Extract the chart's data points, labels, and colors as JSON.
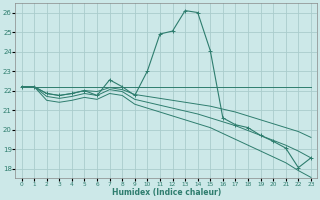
{
  "xlabel": "Humidex (Indice chaleur)",
  "bg_color": "#cce8e8",
  "grid_color": "#aacccc",
  "line_color": "#2e7d6e",
  "xlim": [
    -0.5,
    23.5
  ],
  "ylim": [
    17.5,
    26.5
  ],
  "yticks": [
    18,
    19,
    20,
    21,
    22,
    23,
    24,
    25,
    26
  ],
  "xticks": [
    0,
    1,
    2,
    3,
    4,
    5,
    6,
    7,
    8,
    9,
    10,
    11,
    12,
    13,
    14,
    15,
    16,
    17,
    18,
    19,
    20,
    21,
    22,
    23
  ],
  "series_flat_x": [
    0,
    1,
    2,
    3,
    4,
    5,
    6,
    7,
    8,
    9,
    10,
    11,
    12,
    13,
    14,
    15,
    16,
    17,
    18,
    19,
    20,
    21,
    22,
    23
  ],
  "series_flat_y": [
    22.2,
    22.2,
    22.2,
    22.2,
    22.2,
    22.2,
    22.2,
    22.2,
    22.2,
    22.2,
    22.2,
    22.2,
    22.2,
    22.2,
    22.2,
    22.2,
    22.2,
    22.2,
    22.2,
    22.2,
    22.2,
    22.2,
    22.2,
    22.2
  ],
  "series_upper_x": [
    0,
    1,
    2,
    3,
    4,
    5,
    6,
    7,
    8,
    9,
    10,
    11,
    12,
    13,
    14,
    15,
    16,
    17,
    18,
    19,
    20,
    21,
    22,
    23
  ],
  "series_upper_y": [
    22.2,
    22.2,
    21.85,
    21.75,
    21.85,
    22.0,
    21.95,
    22.15,
    22.05,
    21.8,
    21.7,
    21.6,
    21.5,
    21.4,
    21.3,
    21.2,
    21.05,
    20.9,
    20.7,
    20.5,
    20.3,
    20.1,
    19.9,
    19.6
  ],
  "series_lower_x": [
    0,
    1,
    2,
    3,
    4,
    5,
    6,
    7,
    8,
    9,
    10,
    11,
    12,
    13,
    14,
    15,
    16,
    17,
    18,
    19,
    20,
    21,
    22,
    23
  ],
  "series_lower_y": [
    22.2,
    22.2,
    21.7,
    21.6,
    21.7,
    21.85,
    21.75,
    22.05,
    21.95,
    21.55,
    21.4,
    21.25,
    21.1,
    20.95,
    20.8,
    20.6,
    20.4,
    20.2,
    19.95,
    19.7,
    19.45,
    19.2,
    18.9,
    18.55
  ],
  "series_lowest_x": [
    0,
    1,
    2,
    3,
    4,
    5,
    6,
    7,
    8,
    9,
    10,
    11,
    12,
    13,
    14,
    15,
    16,
    17,
    18,
    19,
    20,
    21,
    22,
    23
  ],
  "series_lowest_y": [
    22.2,
    22.2,
    21.5,
    21.4,
    21.5,
    21.65,
    21.55,
    21.85,
    21.75,
    21.3,
    21.1,
    20.9,
    20.7,
    20.5,
    20.3,
    20.1,
    19.8,
    19.5,
    19.2,
    18.9,
    18.6,
    18.3,
    17.9,
    17.55
  ],
  "main_x": [
    0,
    1,
    2,
    3,
    4,
    5,
    6,
    7,
    8,
    9,
    10,
    11,
    12,
    13,
    14,
    15,
    16,
    17,
    18,
    19,
    20,
    21,
    22,
    23
  ],
  "main_y": [
    22.2,
    22.2,
    21.85,
    21.75,
    21.85,
    22.0,
    21.75,
    22.55,
    22.2,
    21.75,
    23.0,
    24.9,
    25.05,
    26.1,
    26.0,
    24.05,
    20.6,
    20.25,
    20.1,
    19.7,
    19.4,
    19.05,
    18.05,
    18.55
  ]
}
